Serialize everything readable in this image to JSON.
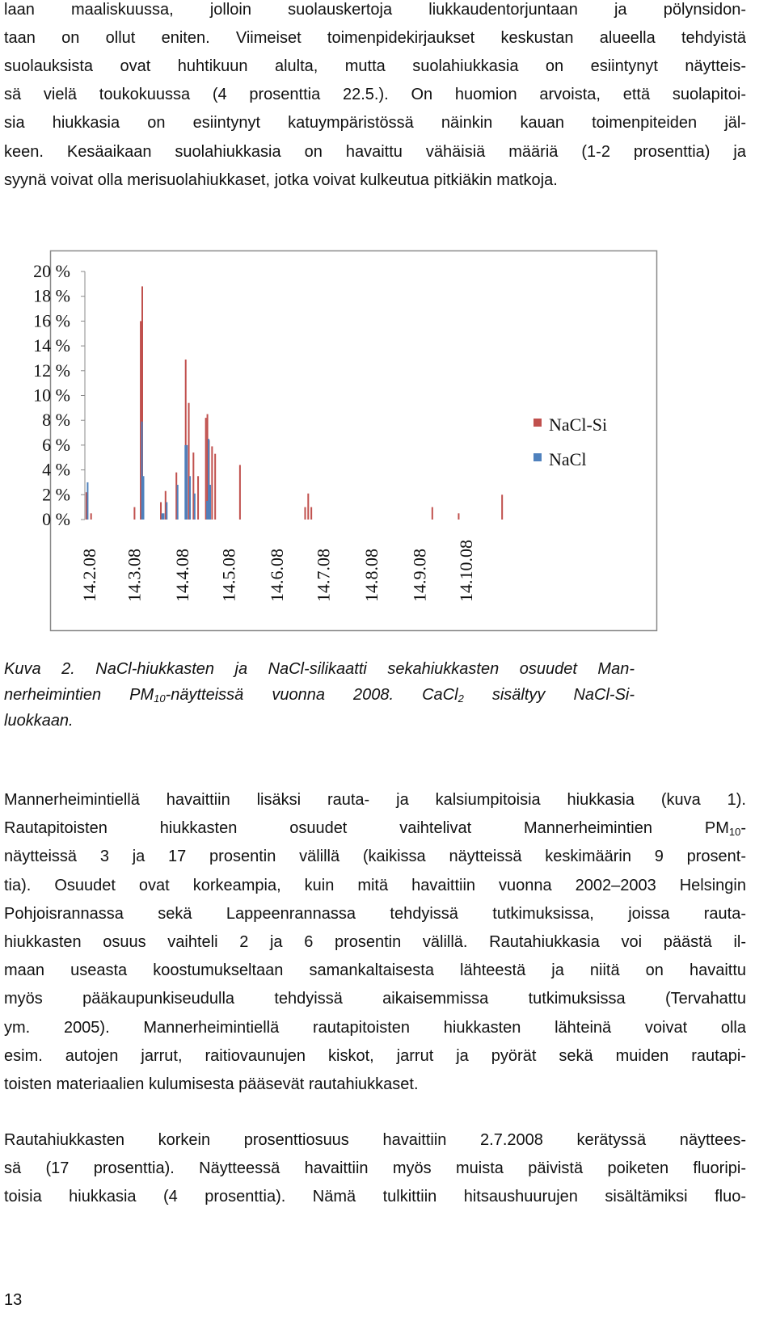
{
  "paragraphs": [
    {
      "lines": [
        "laan maaliskuussa, jolloin suolauskertoja liukkaudentorjuntaan ja pölynsidon-",
        "taan on ollut eniten. Viimeiset toimenpidekirjaukset keskustan alueella tehdyistä",
        "suolauksista ovat huhtikuun alulta, mutta suolahiukkasia on esiintynyt näytteis-",
        "sä vielä toukokuussa (4 prosenttia 22.5.). On huomion arvoista, että suolapitoi-",
        "sia hiukkasia on esiintynyt katuympäristössä näinkin kauan toimenpiteiden jäl-",
        "keen. Kesäaikaan suolahiukkasia on havaittu vähäisiä määriä (1-2 prosenttia) ja",
        "syynä voivat olla merisuolahiukkaset, jotka voivat kulkeutua pitkiäkin matkoja."
      ]
    },
    {
      "lines": [
        "Mannerheimintiellä havaittiin lisäksi rauta- ja kalsiumpitoisia hiukkasia (kuva 1).",
        [
          "Rautapitoisten hiukkasten osuudet vaihtelivat Mannerheimintien PM",
          "10",
          "-"
        ],
        "näytteissä 3 ja 17 prosentin välillä (kaikissa näytteissä keskimäärin 9 prosent-",
        "tia). Osuudet ovat korkeampia, kuin mitä havaittiin vuonna 2002–2003 Helsingin",
        "Pohjoisrannassa sekä Lappeenrannassa tehdyissä tutkimuksissa, joissa rauta-",
        "hiukkasten osuus vaihteli 2 ja 6 prosentin välillä. Rautahiukkasia voi päästä il-",
        "maan useasta koostumukseltaan samankaltaisesta lähteestä ja niitä on havaittu",
        "myös pääkaupunkiseudulla tehdyissä aikaisemmissa tutkimuksissa (Tervahattu",
        "ym. 2005). Mannerheimintiellä rautapitoisten hiukkasten lähteinä voivat olla",
        "esim. autojen jarrut, raitiovaunujen kiskot, jarrut ja pyörät sekä muiden rautapi-",
        "toisten materiaalien kulumisesta pääsevät rautahiukkaset."
      ]
    },
    {
      "lines": [
        "Rautahiukkasten korkein prosenttiosuus havaittiin 2.7.2008 kerätyssä näyttees-",
        "sä (17 prosenttia). Näytteessä havaittiin myös muista päivistä poiketen fluoripi-",
        "toisia hiukkasia (4 prosenttia). Nämä tulkittiin hitsaushuurujen sisältämiksi fluo-"
      ]
    }
  ],
  "caption": {
    "lines": [
      "Kuva 2. NaCl-hiukkasten ja NaCl-silikaatti sekahiukkasten osuudet Man-",
      [
        "nerheimintien PM",
        "10",
        "-näytteissä vuonna 2008. CaCl",
        "2",
        " sisältyy NaCl-Si-"
      ],
      "luokkaan."
    ]
  },
  "page_number": "13",
  "chart_data": {
    "type": "bar",
    "x": [
      43,
      46,
      74,
      78,
      79,
      91,
      92,
      94,
      101,
      106,
      107,
      109,
      112,
      115,
      120,
      121,
      122,
      124,
      126,
      142,
      184,
      186,
      188,
      266,
      283,
      311
    ],
    "series": [
      {
        "name": "NaCl-Si",
        "color": "#c0504d",
        "values": [
          2.2,
          0.5,
          1,
          16,
          18.8,
          1.4,
          null,
          2.3,
          3.8,
          null,
          12.9,
          9.4,
          5.4,
          3.5,
          8.2,
          8.5,
          6.4,
          5.9,
          5.3,
          4.4,
          1,
          2.1,
          1,
          1,
          0.5,
          2
        ]
      },
      {
        "name": "NaCl",
        "color": "#4f81bd",
        "values": [
          3,
          null,
          null,
          7.9,
          3.5,
          0.5,
          0.5,
          1.4,
          2.8,
          6,
          6,
          3.5,
          2.1,
          null,
          1.5,
          6.5,
          2.8,
          null,
          null,
          null,
          null,
          null,
          null,
          null,
          null,
          null
        ]
      }
    ],
    "xlim": [
      42,
      313
    ],
    "xticks": [
      {
        "value": 45,
        "label": "14.2.08"
      },
      {
        "value": 74,
        "label": "14.3.08"
      },
      {
        "value": 105,
        "label": "14.4.08"
      },
      {
        "value": 135,
        "label": "14.5.08"
      },
      {
        "value": 166,
        "label": "14.6.08"
      },
      {
        "value": 196,
        "label": "14.7.08"
      },
      {
        "value": 227,
        "label": "14.8.08"
      },
      {
        "value": 258,
        "label": "14.9.08"
      },
      {
        "value": 288,
        "label": "14.10.08"
      }
    ],
    "ylim": [
      0,
      20
    ],
    "yticks": [
      {
        "value": 0,
        "label": "0 %"
      },
      {
        "value": 2,
        "label": "2 %"
      },
      {
        "value": 4,
        "label": "4 %"
      },
      {
        "value": 6,
        "label": "6 %"
      },
      {
        "value": 8,
        "label": "8 %"
      },
      {
        "value": 10,
        "label": "10 %"
      },
      {
        "value": 12,
        "label": "12 %"
      },
      {
        "value": 14,
        "label": "14 %"
      },
      {
        "value": 16,
        "label": "16 %"
      },
      {
        "value": 18,
        "label": "18 %"
      },
      {
        "value": 20,
        "label": "20 %"
      }
    ],
    "legend": "right"
  }
}
